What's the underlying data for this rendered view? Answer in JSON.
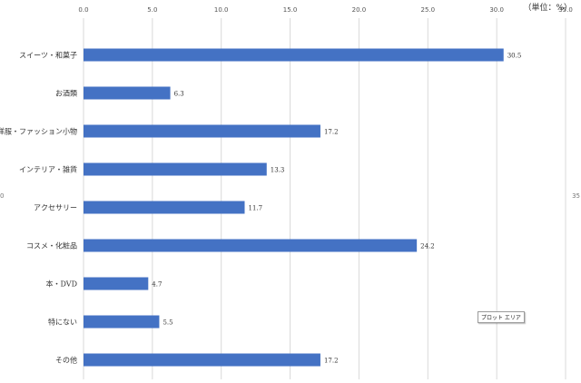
{
  "unit_label": "（単位：%）",
  "tooltip_text": "プロット エリア",
  "edge_marks": {
    "left": "0",
    "right": "35"
  },
  "chart_data": {
    "type": "bar",
    "orientation": "horizontal",
    "categories": [
      "スイーツ・和菓子",
      "お酒類",
      "洋服・ファッション小物",
      "インテリア・雑貨",
      "アクセサリー",
      "コスメ・化粧品",
      "本・DVD",
      "特にない",
      "その他"
    ],
    "values": [
      30.5,
      6.3,
      17.2,
      13.3,
      11.7,
      24.2,
      4.7,
      5.5,
      17.2
    ],
    "value_labels": [
      "30.5",
      "6.3",
      "17.2",
      "13.3",
      "11.7",
      "24.2",
      "4.7",
      "5.5",
      "17.2"
    ],
    "x_ticks": [
      "0.0",
      "5.0",
      "10.0",
      "15.0",
      "20.0",
      "25.0",
      "30.0",
      "35.0"
    ],
    "xlim": [
      0,
      35
    ],
    "grid": true,
    "title": "",
    "xlabel": "",
    "ylabel": "",
    "bar_color": "#4472C4",
    "grid_color": "#d9d9d9"
  }
}
